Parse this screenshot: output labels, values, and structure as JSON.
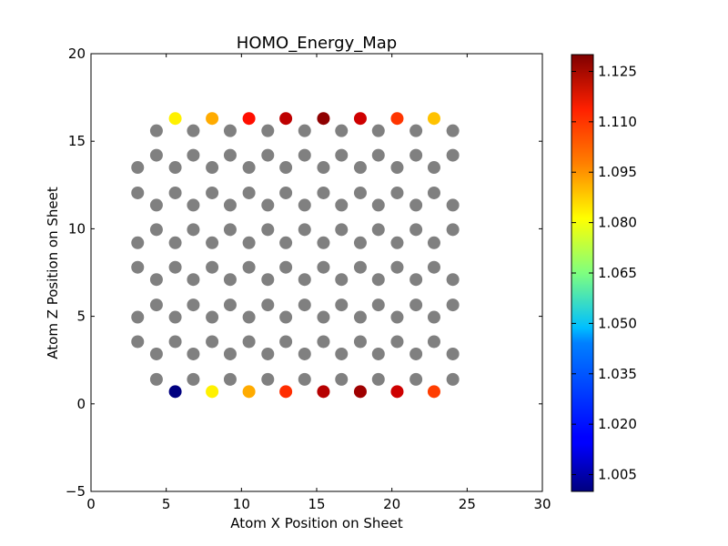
{
  "chart_data": {
    "type": "scatter",
    "title": "HOMO_Energy_Map",
    "xlabel": "Atom X Position on Sheet",
    "ylabel": "Atom Z Position on Sheet",
    "xlim": [
      0,
      30
    ],
    "ylim": [
      -5,
      20
    ],
    "xticks": [
      0,
      5,
      10,
      15,
      20,
      25,
      30
    ],
    "yticks": [
      -5,
      0,
      5,
      10,
      15,
      20
    ],
    "xtick_labels": [
      "0",
      "5",
      "10",
      "15",
      "20",
      "25",
      "30"
    ],
    "ytick_labels": [
      "−5",
      "0",
      "5",
      "10",
      "15",
      "20"
    ],
    "grid": false,
    "colormap": "jet",
    "colorbar": {
      "range": [
        1.0,
        1.13
      ],
      "ticks": [
        1.005,
        1.02,
        1.035,
        1.05,
        1.065,
        1.08,
        1.095,
        1.11,
        1.125
      ],
      "tick_labels": [
        "1.005",
        "1.020",
        "1.035",
        "1.050",
        "1.065",
        "1.080",
        "1.095",
        "1.110",
        "1.125"
      ]
    },
    "neutral_point_color": "#808080",
    "lattice": {
      "note_values_are_data_units": true,
      "x_pattern_positions": [
        3.1,
        4.35,
        5.6,
        6.8,
        8.05,
        9.25,
        10.5,
        11.75,
        12.95,
        14.2,
        15.45,
        16.65,
        17.9,
        19.1,
        20.35,
        21.6,
        22.8,
        24.05
      ],
      "z_rows": [
        {
          "z": 16.3,
          "x": [
            5.6,
            8.05,
            10.5,
            12.95,
            15.45,
            17.9,
            20.35,
            22.8
          ],
          "values": [
            1.083,
            1.092,
            1.112,
            1.122,
            1.128,
            1.12,
            1.107,
            1.089
          ]
        },
        {
          "z": 15.6,
          "x": [
            4.35,
            6.8,
            9.25,
            11.75,
            14.2,
            16.65,
            19.1,
            21.6,
            24.05
          ]
        },
        {
          "z": 14.2,
          "x": [
            4.35,
            6.8,
            9.25,
            11.75,
            14.2,
            16.65,
            19.1,
            21.6,
            24.05
          ]
        },
        {
          "z": 13.5,
          "x": [
            3.1,
            5.6,
            8.05,
            10.5,
            12.95,
            15.45,
            17.9,
            20.35,
            22.8
          ]
        },
        {
          "z": 12.05,
          "x": [
            3.1,
            5.6,
            8.05,
            10.5,
            12.95,
            15.45,
            17.9,
            20.35,
            22.8
          ]
        },
        {
          "z": 11.35,
          "x": [
            4.35,
            6.8,
            9.25,
            11.75,
            14.2,
            16.65,
            19.1,
            21.6,
            24.05
          ]
        },
        {
          "z": 9.95,
          "x": [
            4.35,
            6.8,
            9.25,
            11.75,
            14.2,
            16.65,
            19.1,
            21.6,
            24.05
          ]
        },
        {
          "z": 9.2,
          "x": [
            3.1,
            5.6,
            8.05,
            10.5,
            12.95,
            15.45,
            17.9,
            20.35,
            22.8
          ]
        },
        {
          "z": 7.8,
          "x": [
            3.1,
            5.6,
            8.05,
            10.5,
            12.95,
            15.45,
            17.9,
            20.35,
            22.8
          ]
        },
        {
          "z": 7.1,
          "x": [
            4.35,
            6.8,
            9.25,
            11.75,
            14.2,
            16.65,
            19.1,
            21.6,
            24.05
          ]
        },
        {
          "z": 5.65,
          "x": [
            4.35,
            6.8,
            9.25,
            11.75,
            14.2,
            16.65,
            19.1,
            21.6,
            24.05
          ]
        },
        {
          "z": 4.95,
          "x": [
            3.1,
            5.6,
            8.05,
            10.5,
            12.95,
            15.45,
            17.9,
            20.35,
            22.8
          ]
        },
        {
          "z": 3.55,
          "x": [
            3.1,
            5.6,
            8.05,
            10.5,
            12.95,
            15.45,
            17.9,
            20.35,
            22.8
          ]
        },
        {
          "z": 2.85,
          "x": [
            4.35,
            6.8,
            9.25,
            11.75,
            14.2,
            16.65,
            19.1,
            21.6,
            24.05
          ]
        },
        {
          "z": 1.4,
          "x": [
            4.35,
            6.8,
            9.25,
            11.75,
            14.2,
            16.65,
            19.1,
            21.6,
            24.05
          ]
        },
        {
          "z": 0.7,
          "x": [
            5.6,
            8.05,
            10.5,
            12.95,
            15.45,
            17.9,
            20.35,
            22.8
          ],
          "values": [
            1.0,
            1.083,
            1.092,
            1.108,
            1.123,
            1.126,
            1.12,
            1.106
          ]
        }
      ]
    }
  }
}
